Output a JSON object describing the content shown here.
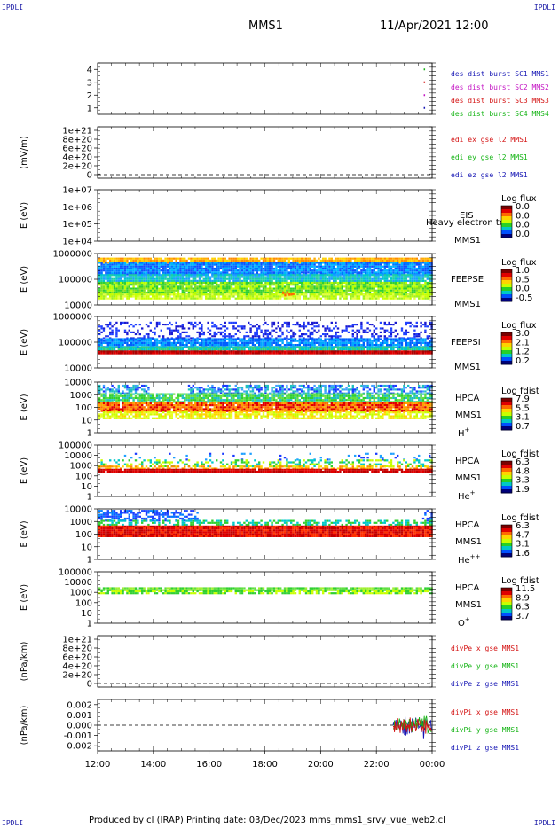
{
  "corners": {
    "tl": "IPDLI",
    "tr": "IPDLI",
    "bl": "IPDLI",
    "br": "IPDLI"
  },
  "header": {
    "mission": "MMS1",
    "datetime": "11/Apr/2021 12:00"
  },
  "footer": {
    "text": "Produced by cl (IRAP)   Printing date: 03/Dec/2023   mms_mms1_srvy_vue_web2.cl"
  },
  "time_axis": {
    "ticks": [
      "12:00",
      "14:00",
      "16:00",
      "18:00",
      "20:00",
      "22:00",
      "00:00"
    ]
  },
  "chart_data": [
    {
      "type": "scatter",
      "id": "burst",
      "ylabel": "",
      "ylim": [
        0.5,
        4.5
      ],
      "tick_labels": [
        "1",
        "2",
        "3",
        "4"
      ],
      "tick_values": [
        1,
        2,
        3,
        4
      ],
      "legend": [
        {
          "text": "des dist burst SC1 MMS1",
          "color": "#1515b4"
        },
        {
          "text": "des dist burst SC2 MMS2",
          "color": "#c416c4"
        },
        {
          "text": "des dist burst SC3 MMS3",
          "color": "#d41313"
        },
        {
          "text": "des dist burst SC4 MMS4",
          "color": "#15b415"
        }
      ],
      "points": [
        {
          "x": 11.7,
          "y": 4
        },
        {
          "x": 11.7,
          "y": 3
        },
        {
          "x": 11.7,
          "y": 2
        },
        {
          "x": 11.7,
          "y": 1
        }
      ]
    },
    {
      "type": "line",
      "id": "edi",
      "ylabel": "(mV/m)",
      "tick_labels": [
        "0",
        "2e+20",
        "4e+20",
        "6e+20",
        "8e+20",
        "1e+21"
      ],
      "legend": [
        {
          "text": "edi ex gse l2 MMS1",
          "color": "#d41313"
        },
        {
          "text": "edi ey gse l2 MMS1",
          "color": "#15b415"
        },
        {
          "text": "edi ez gse l2 MMS1",
          "color": "#1515b4"
        }
      ],
      "zero_line": true
    },
    {
      "type": "heatmap",
      "id": "eis",
      "ylabel": "E (eV)",
      "tick_labels": [
        "1e+04",
        "1e+05",
        "1e+06",
        "1e+07"
      ],
      "instrument": [
        "EIS",
        "MMS1"
      ],
      "overlay_text": "Heavy electron to",
      "colorbar": {
        "title": "Log flux",
        "labels": [
          "0.0",
          "0.0",
          "0.0",
          "0.0"
        ]
      },
      "pattern": "empty"
    },
    {
      "type": "heatmap",
      "id": "feepse",
      "ylabel": "E (eV)",
      "tick_labels": [
        "10000",
        "100000",
        "1000000"
      ],
      "instrument": [
        "FEEPSE",
        "MMS1"
      ],
      "colorbar": {
        "title": "Log flux",
        "labels": [
          "1.0",
          "0.5",
          "0.0",
          "-0.5"
        ]
      },
      "pattern": "feepse"
    },
    {
      "type": "heatmap",
      "id": "feepsi",
      "ylabel": "E (eV)",
      "tick_labels": [
        "10000",
        "100000",
        "1000000"
      ],
      "instrument": [
        "FEEPSI",
        "MMS1"
      ],
      "colorbar": {
        "title": "Log flux",
        "labels": [
          "3.0",
          "2.1",
          "1.2",
          "0.2"
        ]
      },
      "pattern": "feepsi"
    },
    {
      "type": "heatmap",
      "id": "hpca-h",
      "ylabel": "E (eV)",
      "tick_labels": [
        "1",
        "10",
        "100",
        "1000",
        "10000"
      ],
      "instrument": [
        "HPCA",
        "MMS1"
      ],
      "species": "H",
      "species_sup": "+",
      "colorbar": {
        "title": "Log fdist",
        "labels": [
          "7.9",
          "5.5",
          "3.1",
          "0.7"
        ]
      },
      "pattern": "hpca_h"
    },
    {
      "type": "heatmap",
      "id": "hpca-he",
      "ylabel": "E (eV)",
      "tick_labels": [
        "1",
        "10",
        "100",
        "1000",
        "10000",
        "100000"
      ],
      "instrument": [
        "HPCA",
        "MMS1"
      ],
      "species": "He",
      "species_sup": "+",
      "colorbar": {
        "title": "Log fdist",
        "labels": [
          "6.3",
          "4.8",
          "3.3",
          "1.9"
        ]
      },
      "pattern": "hpca_he"
    },
    {
      "type": "heatmap",
      "id": "hpca-he2",
      "ylabel": "E (eV)",
      "tick_labels": [
        "1",
        "10",
        "100",
        "1000",
        "10000"
      ],
      "instrument": [
        "HPCA",
        "MMS1"
      ],
      "species": "He",
      "species_sup": "++",
      "colorbar": {
        "title": "Log fdist",
        "labels": [
          "6.3",
          "4.7",
          "3.1",
          "1.6"
        ]
      },
      "pattern": "hpca_he2"
    },
    {
      "type": "heatmap",
      "id": "hpca-o",
      "ylabel": "E (eV)",
      "tick_labels": [
        "1",
        "10",
        "100",
        "1000",
        "10000",
        "100000"
      ],
      "instrument": [
        "HPCA",
        "MMS1"
      ],
      "species": "O",
      "species_sup": "+",
      "colorbar": {
        "title": "Log fdist",
        "labels": [
          "11.5",
          "8.9",
          "6.3",
          "3.7"
        ]
      },
      "pattern": "hpca_o"
    },
    {
      "type": "line",
      "id": "divpe",
      "ylabel": "(nPa/km)",
      "tick_labels": [
        "0",
        "2e+20",
        "4e+20",
        "6e+20",
        "8e+20",
        "1e+21"
      ],
      "legend": [
        {
          "text": "divPe x gse MMS1",
          "color": "#d41313"
        },
        {
          "text": "divPe y gse MMS1",
          "color": "#15b415"
        },
        {
          "text": "divPe z gse MMS1",
          "color": "#1515b4"
        }
      ],
      "zero_line": true
    },
    {
      "type": "line",
      "id": "divpi",
      "ylabel": "(nPa/km)",
      "ylim": [
        -0.0025,
        0.0025
      ],
      "tick_labels": [
        "-0.002",
        "-0.001",
        "0.000",
        "0.001",
        "0.002"
      ],
      "tick_values": [
        -0.002,
        -0.001,
        0,
        0.001,
        0.002
      ],
      "legend": [
        {
          "text": "divPi x gse MMS1",
          "color": "#d41313"
        },
        {
          "text": "divPi y gse MMS1",
          "color": "#15b415"
        },
        {
          "text": "divPi z gse MMS1",
          "color": "#1515b4"
        }
      ],
      "zero_line": true,
      "activity_window": [
        10.6,
        12.0
      ]
    }
  ]
}
